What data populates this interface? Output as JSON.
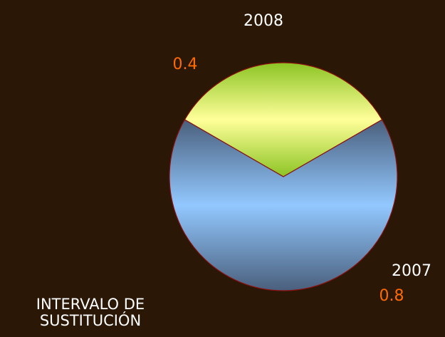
{
  "chart_data": {
    "type": "pie",
    "title": "INTERVALO DE SUSTITUCIÓN",
    "categories": [
      "2008",
      "2007"
    ],
    "values": [
      0.4,
      0.8
    ],
    "colors": [
      "#ffff99",
      "#92c8ff"
    ],
    "label_color": "#ff6a00"
  }
}
